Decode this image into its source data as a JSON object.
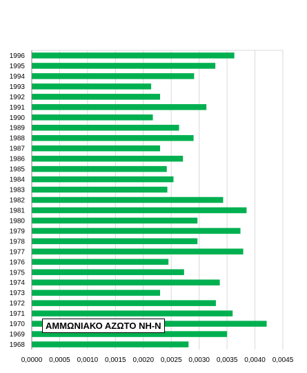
{
  "chart_data": {
    "type": "bar",
    "orientation": "horizontal",
    "categories": [
      "1996",
      "1995",
      "1994",
      "1993",
      "1992",
      "1991",
      "1990",
      "1989",
      "1988",
      "1987",
      "1986",
      "1985",
      "1984",
      "1983",
      "1982",
      "1981",
      "1980",
      "1979",
      "1978",
      "1977",
      "1976",
      "1975",
      "1974",
      "1973",
      "1972",
      "1971",
      "1970",
      "1969",
      "1968"
    ],
    "series": [
      {
        "name": "ΑΜΜΩΝΙΑΚΟ ΑΖΩΤΟ NH-N",
        "color": "#00b050",
        "values": [
          0.00363,
          0.00329,
          0.00291,
          0.00214,
          0.0023,
          0.00313,
          0.00217,
          0.00264,
          0.0029,
          0.0023,
          0.00271,
          0.00242,
          0.00254,
          0.00243,
          0.00343,
          0.00385,
          0.00297,
          0.00374,
          0.00297,
          0.00379,
          0.00245,
          0.00273,
          0.00337,
          0.0023,
          0.0033,
          0.0036,
          0.00421,
          0.0035,
          0.00281
        ]
      }
    ],
    "xlim": [
      0,
      0.0045
    ],
    "xticks": [
      "0,0000",
      "0,0005",
      "0,0010",
      "0,0015",
      "0,0020",
      "0,0025",
      "0,0030",
      "0,0035",
      "0,0040",
      "0,0045"
    ],
    "grid": true,
    "legend": "bottom-left"
  }
}
